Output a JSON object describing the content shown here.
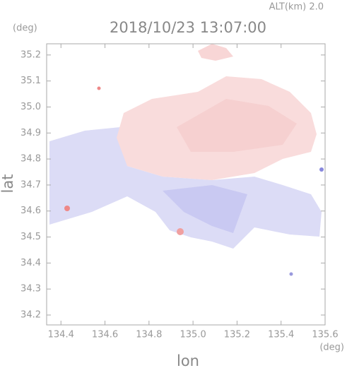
{
  "chart_data": {
    "type": "map",
    "title": "2018/10/23 13:07:00",
    "annotation": "ALT(km) 2.0",
    "x_label": "lon",
    "x_unit": "(deg)",
    "y_label": "lat",
    "y_unit": "(deg)",
    "xlim": [
      134.335,
      135.6
    ],
    "xticks": [
      134.4,
      134.6,
      134.8,
      {
        "value": 135.0,
        "label": "135.0"
      },
      135.2,
      135.4,
      135.6
    ],
    "ylim": [
      34.162,
      35.243
    ],
    "yticks": [
      34.2,
      34.3,
      34.4,
      34.5,
      34.6,
      34.7,
      34.8,
      34.9,
      {
        "value": 35.0,
        "label": "35.0"
      },
      35.1,
      35.2
    ]
  }
}
